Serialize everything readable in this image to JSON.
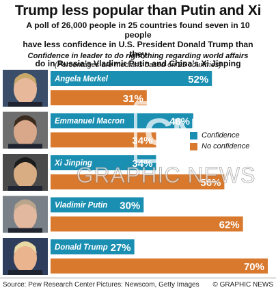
{
  "header": {
    "title": "Trump less popular than Putin and Xi",
    "intro_lines": [
      "A poll of 26,000 people in 25 countries found seven in 10 people",
      "have less confidence in U.S. President Donald Trump than they",
      "do in Russia’s Vladimir Putin and China’s Xi Jinping"
    ]
  },
  "legend": {
    "confidence": "Confidence",
    "no_confidence": "No confidence"
  },
  "watermark": {
    "logo": "GN",
    "text": "GRAPHIC NEWS"
  },
  "footer": {
    "source": "Source: Pew Research Center",
    "pictures": "Pictures: Newscom, Getty Images",
    "credit": "© GRAPHIC NEWS"
  },
  "colors": {
    "confidence": "#1b8fb2",
    "no_confidence": "#d9792e"
  },
  "chart_data": {
    "type": "bar",
    "title": "Confidence in leader to do right thing regarding world affairs",
    "subtitle": "(Percentages are medians based on 25 countries)",
    "categories": [
      "Angela Merkel",
      "Emmanuel Macron",
      "Xi Jinping",
      "Vladimir Putin",
      "Donald Trump"
    ],
    "series": [
      {
        "name": "Confidence",
        "values": [
          52,
          46,
          34,
          30,
          27
        ]
      },
      {
        "name": "No confidence",
        "values": [
          31,
          34,
          56,
          62,
          70
        ]
      }
    ],
    "value_suffix": "%",
    "xlim": [
      0,
      70
    ],
    "grid": false,
    "legend_position": "right"
  }
}
